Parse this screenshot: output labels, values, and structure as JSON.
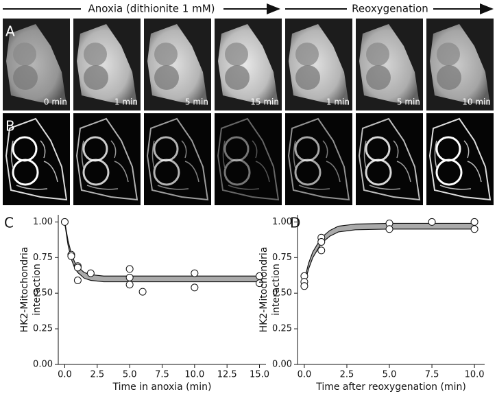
{
  "header": {
    "left": "Anoxia (dithionite 1 mM)",
    "right": "Reoxygenation"
  },
  "image_rows": [
    {
      "label": "A",
      "times": [
        "0 min",
        "1 min",
        "5 min",
        "15 min",
        "1 min",
        "5 min",
        "10 min"
      ]
    },
    {
      "label": "B"
    }
  ],
  "chart_data": [
    {
      "type": "scatter",
      "panel": "C",
      "xlabel": "Time in anoxia (min)",
      "ylabel": [
        "HK2-Mitochondria",
        "interaction"
      ],
      "x": [
        0,
        0.5,
        0.5,
        1,
        1,
        1,
        2,
        5,
        5,
        5,
        6,
        10,
        10,
        15,
        15
      ],
      "values": [
        1.0,
        0.77,
        0.76,
        0.69,
        0.68,
        0.59,
        0.64,
        0.67,
        0.61,
        0.56,
        0.51,
        0.64,
        0.54,
        0.62,
        0.57
      ],
      "fit": {
        "x": [
          0,
          0.25,
          0.5,
          0.75,
          1,
          1.5,
          2,
          3,
          5,
          10,
          15
        ],
        "lower": [
          0.99,
          0.84,
          0.74,
          0.68,
          0.645,
          0.605,
          0.59,
          0.58,
          0.58,
          0.58,
          0.58
        ],
        "upper": [
          1.0,
          0.87,
          0.78,
          0.72,
          0.685,
          0.645,
          0.63,
          0.62,
          0.62,
          0.62,
          0.62
        ]
      },
      "xlim": [
        -0.5,
        15.5
      ],
      "ylim": [
        0,
        1.05
      ],
      "xticks": [
        {
          "value": 0,
          "label": "0.0"
        },
        {
          "value": 2.5,
          "label": "2.5"
        },
        {
          "value": 5,
          "label": "5.0"
        },
        {
          "value": 7.5,
          "label": "7.5"
        },
        {
          "value": 10,
          "label": "10.0"
        },
        {
          "value": 12.5,
          "label": "12.5"
        },
        {
          "value": 15,
          "label": "15.0"
        }
      ],
      "yticks": [
        {
          "value": 0,
          "label": "0.00"
        },
        {
          "value": 0.25,
          "label": "0.25"
        },
        {
          "value": 0.5,
          "label": "0.50"
        },
        {
          "value": 0.75,
          "label": "0.75"
        },
        {
          "value": 1,
          "label": "1.00"
        }
      ]
    },
    {
      "type": "scatter",
      "panel": "D",
      "xlabel": "Time after reoxygenation (min)",
      "ylabel": [
        "HK2-Mitochondria",
        "interaction"
      ],
      "x": [
        0,
        0,
        0,
        1,
        1,
        1,
        5,
        5,
        7.5,
        10,
        10
      ],
      "values": [
        0.62,
        0.58,
        0.55,
        0.89,
        0.86,
        0.8,
        0.99,
        0.95,
        1.0,
        1.0,
        0.95
      ],
      "fit": {
        "x": [
          0,
          0.25,
          0.5,
          1,
          1.5,
          2,
          3,
          5,
          10
        ],
        "lower": [
          0.56,
          0.67,
          0.75,
          0.85,
          0.9,
          0.93,
          0.945,
          0.95,
          0.95
        ],
        "upper": [
          0.59,
          0.71,
          0.79,
          0.89,
          0.94,
          0.97,
          0.985,
          0.99,
          0.99
        ]
      },
      "xlim": [
        -0.4,
        10.6
      ],
      "ylim": [
        0,
        1.05
      ],
      "xticks": [
        {
          "value": 0,
          "label": "0.0"
        },
        {
          "value": 2.5,
          "label": "2.5"
        },
        {
          "value": 5,
          "label": "5.0"
        },
        {
          "value": 7.5,
          "label": "7.5"
        },
        {
          "value": 10,
          "label": "10.0"
        }
      ],
      "yticks": [
        {
          "value": 0,
          "label": "0.00"
        },
        {
          "value": 0.25,
          "label": "0.25"
        },
        {
          "value": 0.5,
          "label": "0.50"
        },
        {
          "value": 0.75,
          "label": "0.75"
        },
        {
          "value": 1,
          "label": "1.00"
        }
      ]
    }
  ]
}
